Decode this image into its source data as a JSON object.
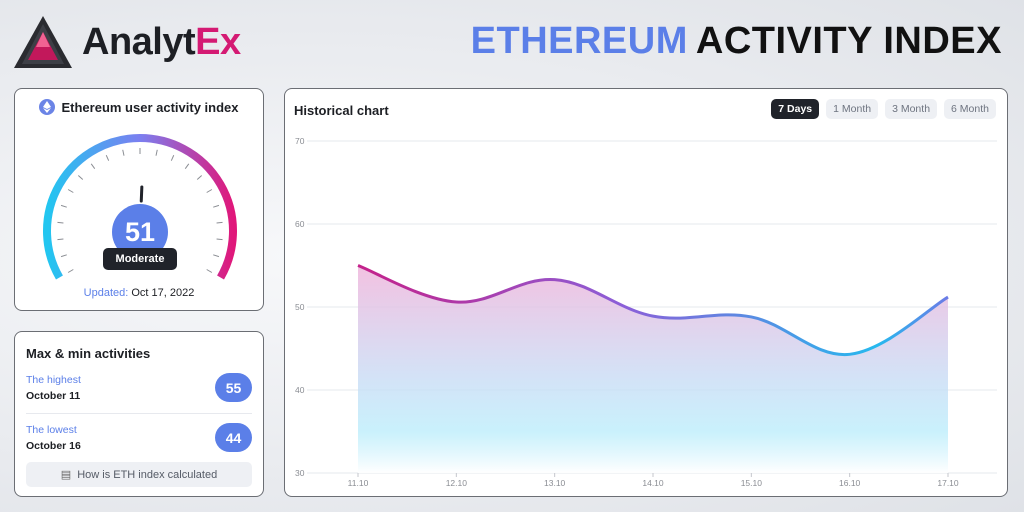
{
  "header": {
    "brand_part1": "Analyt",
    "brand_part2": "Ex",
    "title_part1": "ETHEREUM",
    "title_part2": "ACTIVITY INDEX"
  },
  "colors": {
    "accent": "#5b7fe8",
    "brand": "#d41a73",
    "dark": "#20232a"
  },
  "gauge": {
    "title": "Ethereum user activity index",
    "icon": "ethereum-icon",
    "value": "51",
    "status": "Moderate",
    "updated_label": "Updated:",
    "updated_date": "Oct 17, 2022",
    "min": 0,
    "max": 100
  },
  "maxmin": {
    "title": "Max & min activities",
    "highest_label": "The highest",
    "highest_date": "October 11",
    "highest_value": "55",
    "lowest_label": "The lowest",
    "lowest_date": "October 16",
    "lowest_value": "44",
    "calc_label": "How is ETH index calculated",
    "calc_icon": "book-icon"
  },
  "chart": {
    "title": "Historical chart",
    "tabs": [
      "7 Days",
      "1 Month",
      "3 Month",
      "6 Month"
    ],
    "active_tab": 0
  },
  "chart_data": {
    "type": "area",
    "x": [
      "11.10",
      "12.10",
      "13.10",
      "14.10",
      "15.10",
      "16.10",
      "17.10"
    ],
    "values": [
      55,
      50.6,
      53.3,
      48.9,
      48.8,
      44.3,
      51.2
    ],
    "ylim": [
      30,
      70
    ],
    "yticks": [
      "30",
      "40",
      "50",
      "60",
      "70"
    ],
    "grid": true,
    "legend": "none"
  }
}
